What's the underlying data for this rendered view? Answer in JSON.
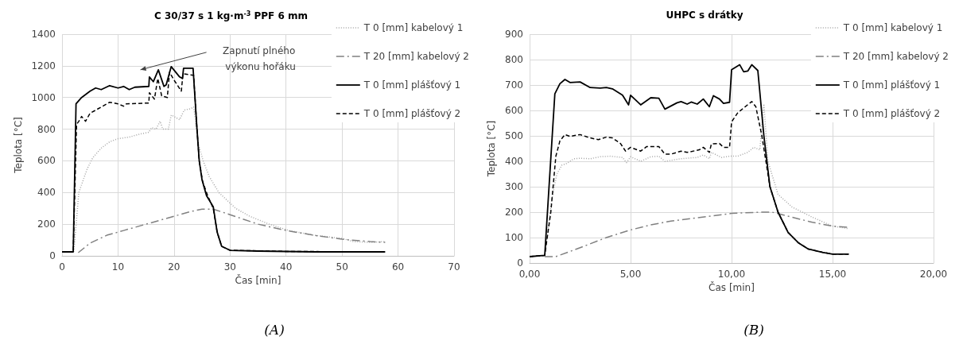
{
  "chart_data": [
    {
      "type": "line",
      "title": "C 30/37 s 1 kg·m$^{-3}$ PPF 6 mm",
      "xlabel": "Čas [min]",
      "ylabel": "Teplota [°C]",
      "xlim": [
        0,
        70
      ],
      "xticks": [
        0,
        10,
        20,
        30,
        40,
        50,
        60,
        70
      ],
      "ylim": [
        0,
        1400
      ],
      "yticks": [
        0,
        200,
        400,
        600,
        800,
        1000,
        1200,
        1400
      ],
      "grid": true,
      "legend": "top right",
      "series": [
        {
          "name": "T 0 [mm] kabelový 1",
          "color": "#a6a6a6",
          "line_style": "dotted",
          "x": [
            0,
            2.1,
            3,
            4.5,
            5.5,
            7,
            8.5,
            10,
            12,
            14,
            15.5,
            16,
            16.8,
            17.5,
            18,
            19,
            19.5,
            21,
            21.8,
            23,
            23.5,
            24.4,
            25.2,
            26.3,
            28,
            31,
            33.5,
            37,
            40.5,
            45,
            50,
            52,
            55,
            57.7
          ],
          "values": [
            25,
            25,
            400,
            550,
            620,
            680,
            720,
            740,
            750,
            770,
            780,
            810,
            800,
            850,
            800,
            800,
            890,
            860,
            920,
            930,
            940,
            700,
            600,
            500,
            400,
            300,
            250,
            200,
            160,
            130,
            110,
            90,
            85,
            90
          ]
        },
        {
          "name": "T 20 [mm] kabelový 2",
          "color": "#808080",
          "line_style": "dashdot",
          "x": [
            2.9,
            5,
            8,
            11,
            14,
            17,
            20,
            23,
            25,
            27,
            30,
            35,
            40,
            45,
            50,
            55,
            57.7
          ],
          "values": [
            20,
            80,
            130,
            160,
            190,
            220,
            250,
            280,
            295,
            295,
            260,
            200,
            160,
            130,
            105,
            90,
            85
          ]
        },
        {
          "name": "T 0 [mm] plášťový 1",
          "color": "#000000",
          "line_style": "solid",
          "x": [
            0,
            2.0,
            2.5,
            3.5,
            5,
            6,
            7,
            8.5,
            10,
            11,
            12,
            13,
            15.5,
            15.6,
            16.3,
            17.2,
            18.2,
            18.6,
            19.5,
            21,
            21.5,
            21.7,
            23.4,
            24.1,
            24.5,
            25,
            25.8,
            27,
            27.7,
            28.5,
            30,
            35,
            45,
            57.7
          ],
          "values": [
            25,
            25,
            960,
            1000,
            1040,
            1060,
            1050,
            1075,
            1060,
            1070,
            1050,
            1065,
            1070,
            1130,
            1100,
            1175,
            1070,
            1080,
            1195,
            1130,
            1120,
            1185,
            1185,
            800,
            600,
            480,
            380,
            310,
            150,
            60,
            35,
            30,
            25,
            25
          ]
        },
        {
          "name": "T 0 [mm] plášťový 2",
          "color": "#000000",
          "line_style": "dashed",
          "x": [
            0,
            2.0,
            2.6,
            3,
            3.5,
            4.2,
            5,
            7,
            8.5,
            10,
            11,
            11.5,
            15.5,
            15.6,
            16.5,
            17.1,
            17.8,
            18.8,
            19.2,
            20,
            21.3,
            21.6,
            23.5,
            24.1,
            24.5,
            25.1,
            26,
            27,
            27.7,
            28.5,
            30,
            40,
            57.7
          ],
          "values": [
            25,
            25,
            830,
            850,
            880,
            850,
            900,
            940,
            970,
            960,
            945,
            960,
            965,
            1030,
            990,
            1120,
            1010,
            1000,
            1160,
            1110,
            1040,
            1150,
            1140,
            800,
            600,
            470,
            380,
            300,
            150,
            60,
            35,
            28,
            25
          ]
        }
      ],
      "annotations": [
        "Zapnutí plného výkonu hořáku",
        "(A)"
      ]
    },
    {
      "type": "line",
      "title": "UHPC s drátky",
      "xlabel": "Čas [min]",
      "ylabel": "Teplota [°C]",
      "xlim": [
        0,
        20
      ],
      "xticks": [
        {
          "value": 0,
          "label": "0,00"
        },
        {
          "value": 5,
          "label": "5,00"
        },
        {
          "value": 10,
          "label": "10,00"
        },
        {
          "value": 15,
          "label": "15,00"
        },
        {
          "value": 20,
          "label": "20,00"
        }
      ],
      "ylim": [
        0,
        900
      ],
      "yticks": [
        0,
        100,
        200,
        300,
        400,
        500,
        600,
        700,
        800,
        900
      ],
      "grid": true,
      "legend": "top right",
      "series": [
        {
          "name": "T 0 [mm] kabelový 1",
          "color": "#a6a6a6",
          "line_style": "dotted",
          "x": [
            0,
            0.75,
            1.1,
            1.35,
            1.6,
            1.8,
            2.2,
            2.5,
            3,
            3.5,
            4,
            4.6,
            4.8,
            5,
            5.5,
            6,
            6.4,
            6.7,
            7.5,
            8.3,
            8.6,
            8.9,
            9,
            9.5,
            9.9,
            10.3,
            10.8,
            11.1,
            11.4,
            11.6,
            11.8,
            12.3,
            13,
            14,
            15,
            15.8
          ],
          "values": [
            25,
            30,
            250,
            350,
            385,
            390,
            410,
            412,
            410,
            418,
            420,
            415,
            395,
            418,
            400,
            418,
            420,
            400,
            410,
            415,
            425,
            410,
            435,
            415,
            420,
            420,
            435,
            455,
            445,
            625,
            400,
            270,
            220,
            180,
            145,
            135
          ]
        },
        {
          "name": "T 20 [mm] kabelový 2",
          "color": "#808080",
          "line_style": "dashdot",
          "x": [
            0.75,
            1.3,
            2.5,
            3.8,
            5,
            6,
            7,
            8,
            9,
            10,
            11.5,
            12,
            13,
            14,
            15,
            15.8
          ],
          "values": [
            25,
            25,
            60,
            100,
            130,
            150,
            165,
            175,
            185,
            195,
            200,
            200,
            180,
            160,
            145,
            140
          ]
        },
        {
          "name": "T 0 [mm] plášťový 1",
          "color": "#000000",
          "line_style": "solid",
          "x": [
            0,
            0.75,
            1.25,
            1.5,
            1.75,
            2,
            2.5,
            3,
            3.5,
            3.8,
            4.1,
            4.6,
            4.9,
            5,
            5.5,
            6,
            6.4,
            6.7,
            7.3,
            7.5,
            7.8,
            8,
            8.3,
            8.6,
            8.9,
            9.1,
            9.4,
            9.6,
            9.9,
            10,
            10.4,
            10.6,
            10.8,
            11,
            11.3,
            11.6,
            11.9,
            12.3,
            12.8,
            13.3,
            13.8,
            14.5,
            15,
            15.8
          ],
          "values": [
            25,
            30,
            665,
            705,
            722,
            710,
            712,
            690,
            688,
            690,
            685,
            660,
            622,
            660,
            622,
            650,
            648,
            605,
            630,
            635,
            625,
            633,
            625,
            645,
            615,
            658,
            645,
            628,
            632,
            760,
            780,
            752,
            755,
            780,
            757,
            500,
            300,
            200,
            120,
            80,
            55,
            42,
            35,
            35
          ]
        },
        {
          "name": "T 0 [mm] plášťový 2",
          "color": "#000000",
          "line_style": "dashed",
          "x": [
            0,
            0.75,
            1.05,
            1.3,
            1.5,
            1.75,
            2,
            2.5,
            3,
            3.4,
            3.8,
            4.1,
            4.5,
            4.75,
            5,
            5.5,
            5.8,
            6.4,
            6.7,
            7,
            7.5,
            7.8,
            8.4,
            8.6,
            8.9,
            9,
            9.4,
            9.6,
            9.9,
            10,
            10.3,
            10.6,
            11,
            11.2,
            11.5,
            11.9,
            12.3,
            12.8,
            13.3,
            13.8,
            14.5,
            15,
            15.8
          ],
          "values": [
            25,
            30,
            200,
            420,
            480,
            505,
            498,
            505,
            492,
            485,
            495,
            492,
            470,
            440,
            455,
            440,
            458,
            458,
            428,
            428,
            440,
            435,
            445,
            455,
            435,
            468,
            470,
            455,
            455,
            555,
            590,
            610,
            635,
            615,
            500,
            300,
            200,
            120,
            80,
            55,
            42,
            35,
            35
          ]
        }
      ],
      "annotations": [
        "(B)"
      ]
    }
  ]
}
